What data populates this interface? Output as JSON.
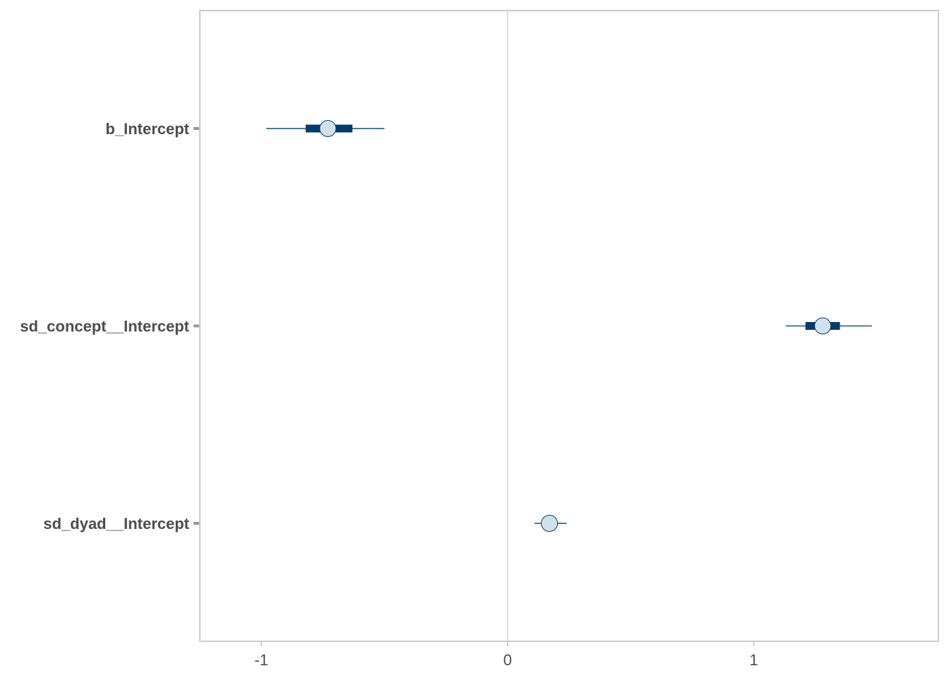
{
  "chart_data": {
    "type": "interval",
    "title": "",
    "xlabel": "",
    "ylabel": "",
    "xlim": [
      -1.25,
      1.75
    ],
    "x_ticks": [
      {
        "value": -1,
        "label": "-1"
      },
      {
        "value": 0,
        "label": "0"
      },
      {
        "value": 1,
        "label": "1"
      }
    ],
    "reference_line": 0,
    "grid": false,
    "legend": "none",
    "colors": {
      "outer_line": "#4a7c96",
      "inner_bar": "#053a6b",
      "point_fill": "#d1e1ec",
      "point_stroke": "#053a6b",
      "reference_line": "#dddddd",
      "panel_border": "#cccccc",
      "tick_text": "#4d4d4d"
    },
    "parameters": [
      {
        "name": "b_Intercept",
        "estimate": -0.73,
        "inner": [
          -0.82,
          -0.63
        ],
        "outer": [
          -0.98,
          -0.5
        ]
      },
      {
        "name": "sd_concept__Intercept",
        "estimate": 1.28,
        "inner": [
          1.21,
          1.35
        ],
        "outer": [
          1.13,
          1.48
        ]
      },
      {
        "name": "sd_dyad__Intercept",
        "estimate": 0.17,
        "inner": [
          0.15,
          0.19
        ],
        "outer": [
          0.11,
          0.24
        ]
      }
    ]
  }
}
